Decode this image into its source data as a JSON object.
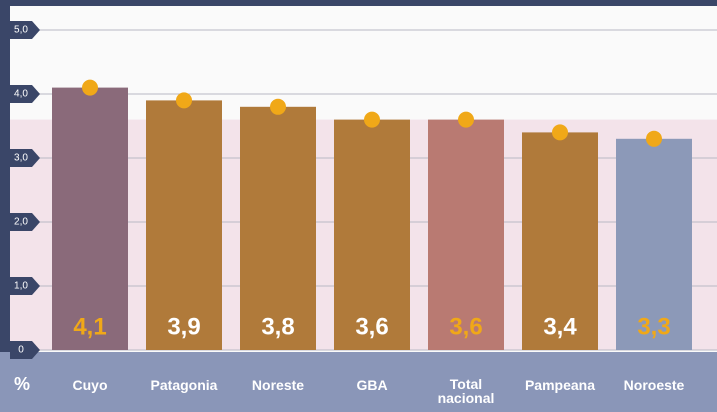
{
  "chart_data": {
    "type": "bar",
    "y_label": "%",
    "categories": [
      "Cuyo",
      "Patagonia",
      "Noreste",
      "GBA",
      "Total nacional",
      "Pampeana",
      "Noroeste"
    ],
    "values": [
      4.1,
      3.9,
      3.8,
      3.6,
      3.6,
      3.4,
      3.3
    ],
    "value_labels": [
      "4,1",
      "3,9",
      "3,8",
      "3,6",
      "3,6",
      "3,4",
      "3,3"
    ],
    "colors": [
      "#8a6a7a",
      "#b07a3a",
      "#b07a3a",
      "#b07a3a",
      "#b97a72",
      "#b07a3a",
      "#8c99b8"
    ],
    "label_colors": [
      "#f0a818",
      "#ffffff",
      "#ffffff",
      "#ffffff",
      "#f0a818",
      "#ffffff",
      "#f0a818"
    ],
    "marker_color": "#f0a818",
    "ylim": [
      0,
      5
    ],
    "yticks": [
      {
        "value": 0,
        "label": "0"
      },
      {
        "value": 1,
        "label": "1,0"
      },
      {
        "value": 2,
        "label": "2,0"
      },
      {
        "value": 3,
        "label": "3,0"
      },
      {
        "value": 4,
        "label": "4,0"
      },
      {
        "value": 5,
        "label": "5,0"
      }
    ],
    "grid": true
  }
}
